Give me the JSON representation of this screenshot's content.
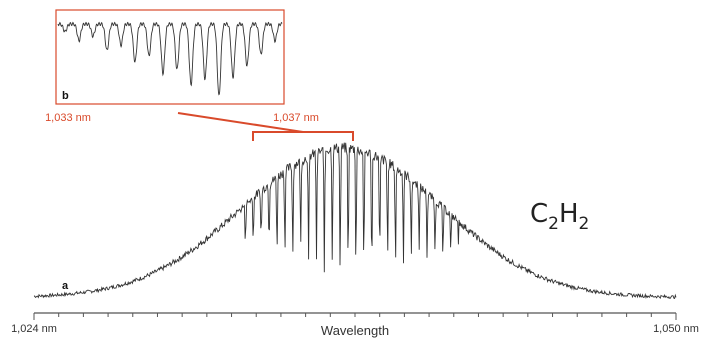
{
  "figure": {
    "molecule": {
      "base1": "C",
      "sub1": "2",
      "base2": "H",
      "sub2": "2"
    },
    "panel_labels": {
      "a": "a",
      "b": "b"
    }
  },
  "colors": {
    "spectrum": "#333333",
    "inset": "#d94a2b",
    "axis": "#555555"
  },
  "chart_data": [
    {
      "type": "line",
      "panel": "a",
      "title": "",
      "xlabel": "Wavelength",
      "ylabel": "",
      "x_unit": "nm",
      "xlim": [
        1024,
        1050
      ],
      "x_tick_labels": [
        {
          "x": 1024,
          "label": "1,024 nm"
        },
        {
          "x": 1050,
          "label": "1,050 nm"
        }
      ],
      "minor_ticks_per_nm": 1,
      "envelope": {
        "center_nm": 1036.5,
        "fwhm_nm": 9.5,
        "peak_rel": 1.0,
        "baseline_rel": 0.06
      },
      "absorption_lines": {
        "start_nm": 1032.4,
        "end_nm": 1041.2,
        "spacing_nm": 0.32,
        "max_depth_rel": 0.85
      },
      "grid": false,
      "legend": "none"
    },
    {
      "type": "line",
      "panel": "b",
      "title": "",
      "xlabel": "",
      "ylabel": "",
      "x_unit": "nm",
      "xlim": [
        1033,
        1037
      ],
      "x_tick_labels": [
        {
          "x": 1033,
          "label": "1,033 nm"
        },
        {
          "x": 1037,
          "label": "1,037 nm"
        }
      ],
      "absorption_line_count": 16,
      "line_depths_rel": [
        0.1,
        0.22,
        0.16,
        0.35,
        0.28,
        0.5,
        0.42,
        0.65,
        0.6,
        0.8,
        0.72,
        0.95,
        0.7,
        0.55,
        0.4,
        0.22
      ],
      "zoom_of": "a",
      "grid": false,
      "legend": "none"
    }
  ]
}
